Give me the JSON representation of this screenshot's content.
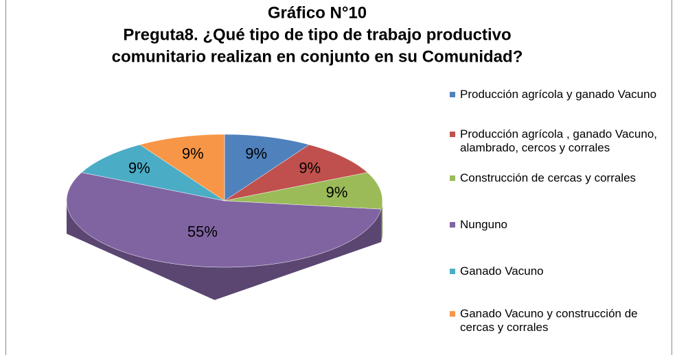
{
  "chart_data": {
    "type": "pie",
    "title": "Gráfico N°10",
    "subtitle": [
      "Preguta8. ¿Qué tipo de tipo de trabajo productivo",
      "comunitario realizan en conjunto en su  Comunidad?"
    ],
    "categories": [
      "Producción agrícola y ganado Vacuno",
      "Producción agrícola , ganado Vacuno, alambrado, cercos y corrales",
      "Construcción de cercas y corrales",
      "Nunguno",
      "Ganado Vacuno",
      "Ganado Vacuno y construcción de cercas y corrales"
    ],
    "values": [
      9,
      9,
      9,
      55,
      9,
      9
    ],
    "value_labels": [
      "9%",
      "9%",
      "9%",
      "55%",
      "9%",
      "9%"
    ],
    "colors": [
      "#4f81bd",
      "#c0504d",
      "#9bbb59",
      "#8064a2",
      "#4bacc6",
      "#f79646"
    ],
    "legend": "right"
  }
}
